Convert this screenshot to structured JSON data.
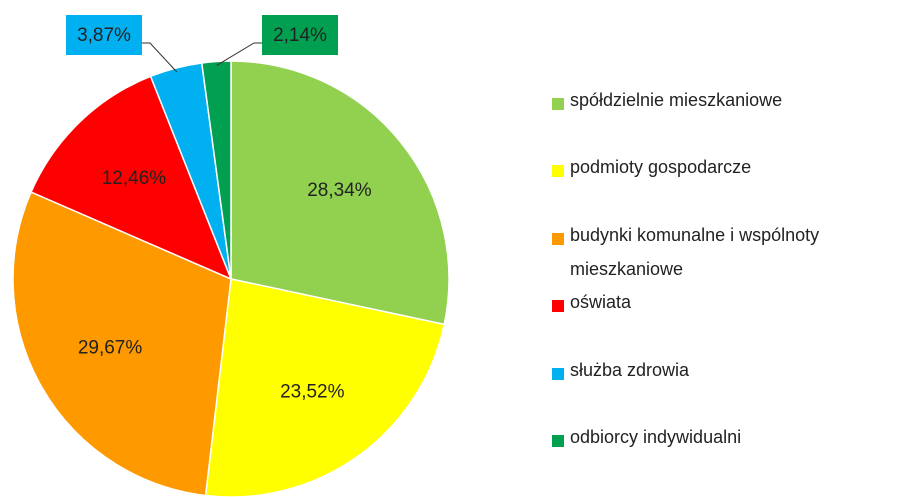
{
  "chart_data": {
    "type": "pie",
    "categories": [
      "spółdzielnie mieszkaniowe",
      "podmioty gospodarcze",
      "budynki komunalne i wspólnoty mieszkaniowe",
      "oświata",
      "służba zdrowia",
      "odbiorcy indywidualni"
    ],
    "values": [
      28.34,
      23.52,
      29.67,
      12.46,
      3.87,
      2.14
    ],
    "value_labels": [
      "28,34%",
      "23,52%",
      "29,67%",
      "12,46%",
      "3,87%",
      "2,14%"
    ],
    "colors": [
      "#92d050",
      "#ffff00",
      "#ff9900",
      "#ff0000",
      "#00b0f0",
      "#00a050"
    ],
    "legend": "right"
  }
}
